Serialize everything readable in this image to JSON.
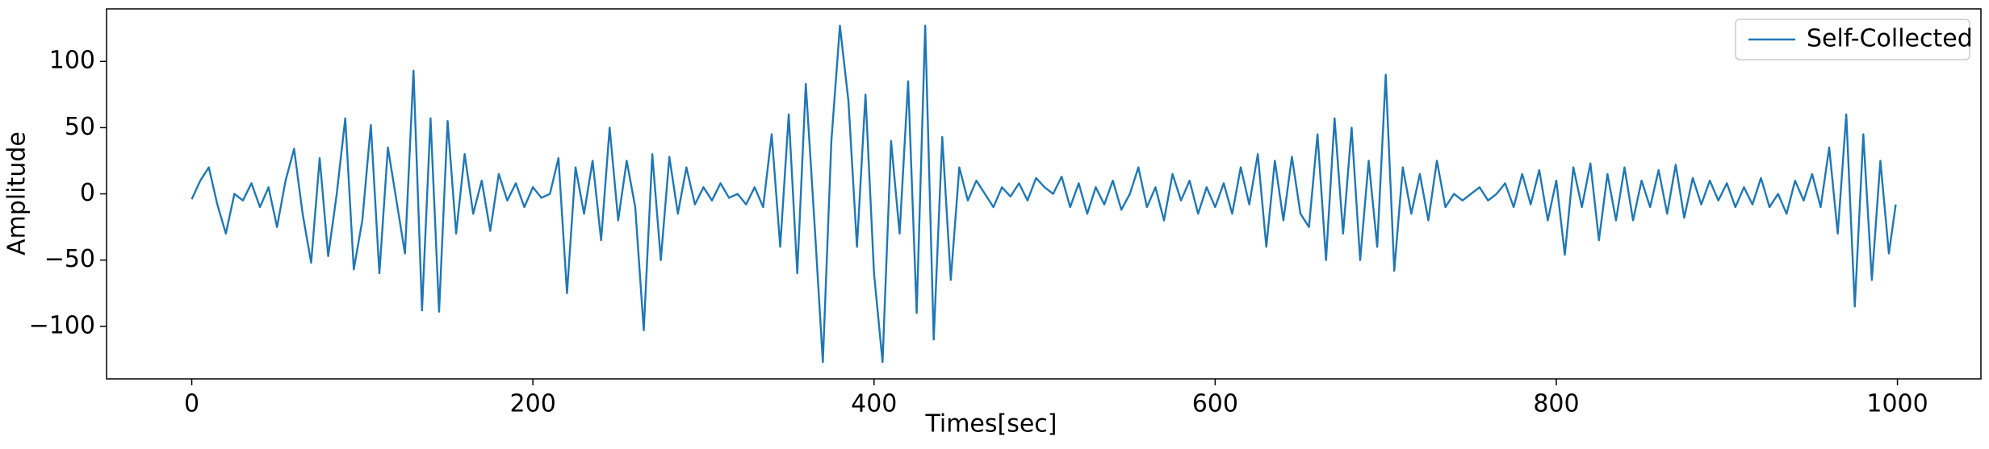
{
  "chart_data": {
    "type": "line",
    "xlabel": "Times[sec]",
    "ylabel": "Amplitude",
    "x": [
      0,
      5,
      10,
      15,
      20,
      25,
      30,
      35,
      40,
      45,
      50,
      55,
      60,
      65,
      70,
      75,
      80,
      85,
      90,
      95,
      100,
      105,
      110,
      115,
      120,
      125,
      130,
      135,
      140,
      145,
      150,
      155,
      160,
      165,
      170,
      175,
      180,
      185,
      190,
      195,
      200,
      205,
      210,
      215,
      220,
      225,
      230,
      235,
      240,
      245,
      250,
      255,
      260,
      265,
      270,
      275,
      280,
      285,
      290,
      295,
      300,
      305,
      310,
      315,
      320,
      325,
      330,
      335,
      340,
      345,
      350,
      355,
      360,
      365,
      370,
      375,
      380,
      385,
      390,
      395,
      400,
      405,
      410,
      415,
      420,
      425,
      430,
      435,
      440,
      445,
      450,
      455,
      460,
      465,
      470,
      475,
      480,
      485,
      490,
      495,
      500,
      505,
      510,
      515,
      520,
      525,
      530,
      535,
      540,
      545,
      550,
      555,
      560,
      565,
      570,
      575,
      580,
      585,
      590,
      595,
      600,
      605,
      610,
      615,
      620,
      625,
      630,
      635,
      640,
      645,
      650,
      655,
      660,
      665,
      670,
      675,
      680,
      685,
      690,
      695,
      700,
      705,
      710,
      715,
      720,
      725,
      730,
      735,
      740,
      745,
      750,
      755,
      760,
      765,
      770,
      775,
      780,
      785,
      790,
      795,
      800,
      805,
      810,
      815,
      820,
      825,
      830,
      835,
      840,
      845,
      850,
      855,
      860,
      865,
      870,
      875,
      880,
      885,
      890,
      895,
      900,
      905,
      910,
      915,
      920,
      925,
      930,
      935,
      940,
      945,
      950,
      955,
      960,
      965,
      970,
      975,
      980,
      985,
      990,
      995,
      999
    ],
    "series": [
      {
        "name": "Self-Collected",
        "color": "#1f77b4",
        "values": [
          -4,
          10,
          20,
          -8,
          -30,
          0,
          -5,
          8,
          -10,
          5,
          -25,
          10,
          34,
          -15,
          -52,
          27,
          -47,
          0,
          57,
          -57,
          -20,
          52,
          -60,
          35,
          -5,
          -45,
          93,
          -88,
          57,
          -89,
          55,
          -30,
          30,
          -15,
          10,
          -28,
          15,
          -5,
          8,
          -10,
          5,
          -3,
          0,
          27,
          -75,
          20,
          -15,
          25,
          -35,
          50,
          -20,
          25,
          -10,
          -103,
          30,
          -50,
          28,
          -15,
          20,
          -8,
          5,
          -5,
          8,
          -3,
          0,
          -8,
          5,
          -10,
          45,
          -40,
          60,
          -60,
          83,
          -20,
          -127,
          40,
          127,
          70,
          -40,
          75,
          -60,
          -127,
          40,
          -30,
          85,
          -90,
          127,
          -110,
          43,
          -65,
          20,
          -5,
          10,
          0,
          -10,
          5,
          -2,
          8,
          -5,
          12,
          5,
          0,
          13,
          -10,
          8,
          -15,
          5,
          -8,
          10,
          -12,
          0,
          20,
          -10,
          5,
          -20,
          15,
          -5,
          10,
          -15,
          5,
          -10,
          8,
          -15,
          20,
          -8,
          30,
          -40,
          25,
          -20,
          28,
          -15,
          -25,
          45,
          -50,
          57,
          -30,
          50,
          -50,
          25,
          -40,
          90,
          -58,
          20,
          -15,
          15,
          -20,
          25,
          -10,
          0,
          -5,
          0,
          5,
          -5,
          0,
          8,
          -10,
          15,
          -8,
          18,
          -20,
          10,
          -46,
          20,
          -10,
          23,
          -35,
          15,
          -20,
          20,
          -20,
          10,
          -10,
          18,
          -15,
          22,
          -18,
          12,
          -8,
          10,
          -5,
          8,
          -10,
          5,
          -8,
          12,
          -10,
          0,
          -15,
          10,
          -5,
          15,
          -10,
          35,
          -30,
          60,
          -85,
          45,
          -65,
          25,
          -45,
          -8
        ]
      }
    ],
    "xlim": [
      -49.95,
      1048.95
    ],
    "xticks": [
      0,
      200,
      400,
      600,
      800,
      1000
    ],
    "ylim": [
      -139.7,
      139.7
    ],
    "yticks": [
      {
        "value": -100,
        "label": "−100"
      },
      {
        "value": -50,
        "label": "−50"
      },
      0,
      50,
      100
    ],
    "grid": false,
    "legend": "upper right"
  }
}
